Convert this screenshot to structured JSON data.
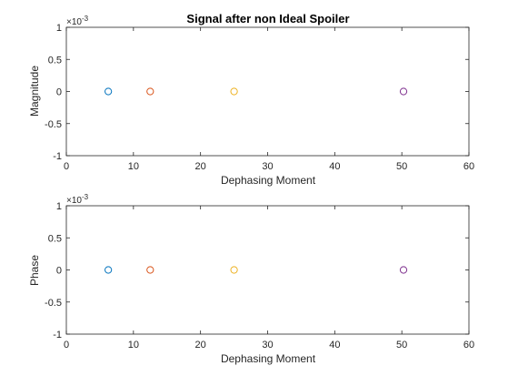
{
  "chart_data": [
    {
      "type": "scatter",
      "title": "Signal after non Ideal Spoiler",
      "xlabel": "Dephasing Moment",
      "ylabel": "Magnitude",
      "xlim": [
        0,
        60
      ],
      "ylim": [
        -1,
        1
      ],
      "xticks": [
        "0",
        "10",
        "20",
        "30",
        "40",
        "50",
        "60"
      ],
      "yticks": [
        "-1",
        "-0.5",
        "0",
        "0.5",
        "1"
      ],
      "y_multiplier": {
        "base": "×10",
        "exponent": "-3"
      },
      "marker": "circle-open",
      "grid": false,
      "series": [
        {
          "x": [
            6.25
          ],
          "y": [
            0
          ],
          "color": "#0072BD"
        },
        {
          "x": [
            12.5
          ],
          "y": [
            0
          ],
          "color": "#D95319"
        },
        {
          "x": [
            25
          ],
          "y": [
            0
          ],
          "color": "#EDB120"
        },
        {
          "x": [
            50.25
          ],
          "y": [
            0
          ],
          "color": "#7E2F8E"
        }
      ]
    },
    {
      "type": "scatter",
      "title": "",
      "xlabel": "Dephasing Moment",
      "ylabel": "Phase",
      "xlim": [
        0,
        60
      ],
      "ylim": [
        -1,
        1
      ],
      "xticks": [
        "0",
        "10",
        "20",
        "30",
        "40",
        "50",
        "60"
      ],
      "yticks": [
        "-1",
        "-0.5",
        "0",
        "0.5",
        "1"
      ],
      "y_multiplier": {
        "base": "×10",
        "exponent": "-3"
      },
      "marker": "circle-open",
      "grid": false,
      "series": [
        {
          "x": [
            6.25
          ],
          "y": [
            0
          ],
          "color": "#0072BD"
        },
        {
          "x": [
            12.5
          ],
          "y": [
            0
          ],
          "color": "#D95319"
        },
        {
          "x": [
            25
          ],
          "y": [
            0
          ],
          "color": "#EDB120"
        },
        {
          "x": [
            50.25
          ],
          "y": [
            0
          ],
          "color": "#7E2F8E"
        }
      ]
    }
  ]
}
